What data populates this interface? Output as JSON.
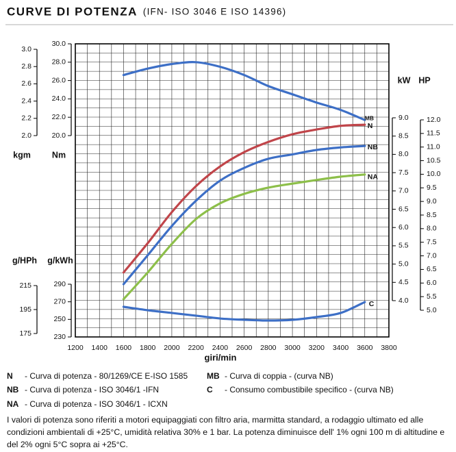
{
  "chart_data": {
    "type": "line",
    "title": "CURVE DI POTENZA",
    "subtitle": "(IFN- ISO 3046 E ISO 14396)",
    "x_label": "giri/min",
    "x": [
      1600,
      1800,
      2000,
      2200,
      2400,
      2600,
      2800,
      3000,
      3200,
      3400,
      3600
    ],
    "xlim": [
      1200,
      3800
    ],
    "xticks": [
      1200,
      1400,
      1600,
      1800,
      2000,
      2200,
      2400,
      2600,
      2800,
      3000,
      3200,
      3400,
      3600,
      3800
    ],
    "grid": true,
    "y_axes": [
      {
        "label": "kgm",
        "lim": [
          2,
          3
        ],
        "ticks": [
          {
            "value": 2,
            "label": "2.0"
          },
          {
            "value": 2.2,
            "label": "2.2"
          },
          {
            "value": 2.4,
            "label": "2.4"
          },
          {
            "value": 2.6,
            "label": "2.6"
          },
          {
            "value": 2.8,
            "label": "2.8"
          },
          {
            "value": 3,
            "label": "3.0"
          }
        ]
      },
      {
        "label": "Nm",
        "lim": [
          20,
          30
        ],
        "ticks": [
          {
            "value": 20,
            "label": "20.0"
          },
          {
            "value": 22,
            "label": "22.0"
          },
          {
            "value": 24,
            "label": "24.0"
          },
          {
            "value": 26,
            "label": "26.0"
          },
          {
            "value": 28,
            "label": "28.0"
          },
          {
            "value": 30,
            "label": "30.0"
          }
        ]
      },
      {
        "label": "kW",
        "lim": [
          4,
          9
        ],
        "ticks": [
          {
            "value": 4,
            "label": "4.0"
          },
          4.5,
          {
            "value": 5,
            "label": "5.0"
          },
          5.5,
          {
            "value": 6,
            "label": "6.0"
          },
          6.5,
          {
            "value": 7,
            "label": "7.0"
          },
          7.5,
          {
            "value": 8,
            "label": "8.0"
          },
          8.5,
          {
            "value": 9,
            "label": "9.0"
          }
        ]
      },
      {
        "label": "HP",
        "lim": [
          5,
          12
        ],
        "ticks": [
          {
            "value": 5,
            "label": "5.0"
          },
          5.5,
          {
            "value": 6,
            "label": "6.0"
          },
          6.5,
          {
            "value": 7,
            "label": "7.0"
          },
          7.5,
          {
            "value": 8,
            "label": "8.0"
          },
          8.5,
          {
            "value": 9,
            "label": "9.0"
          },
          9.5,
          {
            "value": 10,
            "label": "10.0"
          },
          10.5,
          {
            "value": 11,
            "label": "11.0"
          },
          11.5,
          {
            "value": 12,
            "label": "12.0"
          }
        ]
      },
      {
        "label": "g/HPh",
        "lim": [
          175,
          215
        ],
        "ticks": [
          175,
          195,
          215
        ]
      },
      {
        "label": "g/kWh",
        "lim": [
          230,
          290
        ],
        "ticks": [
          230,
          250,
          270,
          290
        ]
      }
    ],
    "series": [
      {
        "name": "N",
        "description": "- Curva di potenza - 80/1269/CE E-ISO 1585",
        "color": "#c0454a",
        "axis": 2,
        "values": [
          4.77,
          5.57,
          6.42,
          7.13,
          7.67,
          8.06,
          8.34,
          8.55,
          8.68,
          8.78,
          8.81
        ]
      },
      {
        "name": "NB",
        "description": "- Curva di potenza - ISO 3046/1 -IFN",
        "color": "#3d6fc6",
        "axis": 2,
        "values": [
          4.45,
          5.24,
          6.04,
          6.73,
          7.28,
          7.63,
          7.88,
          8.0,
          8.12,
          8.19,
          8.23
        ]
      },
      {
        "name": "NA",
        "description": "- Curva di potenza - ISO 3046/1 - ICXN",
        "color": "#8dbf4a",
        "axis": 2,
        "values": [
          4.04,
          4.77,
          5.55,
          6.23,
          6.66,
          6.92,
          7.09,
          7.2,
          7.3,
          7.39,
          7.45
        ]
      },
      {
        "name": "MB",
        "description": "- Curva di coppia - (curva NB)",
        "color": "#3d6fc6",
        "axis": 1,
        "values": [
          26.6,
          27.3,
          27.8,
          28.0,
          27.5,
          26.6,
          25.4,
          24.5,
          23.6,
          22.8,
          21.7
        ]
      },
      {
        "name": "C",
        "description": "- Consumo combustibile specifico - (curva NB)",
        "color": "#3d6fc6",
        "axis": 5,
        "values": [
          264.3,
          260.4,
          257.3,
          254.2,
          251.0,
          249.5,
          248.7,
          249.5,
          252.6,
          257.3,
          269.7
        ]
      }
    ],
    "note": "I valori di potenza sono riferiti a motori equipaggiati con filtro aria, marmitta standard, a rodaggio ultimato ed alle condizioni ambientali di +25°C, umidità relativa 30% e 1 bar. La potenza diminuisce dell' 1% ogni 100 m di altitudine e del 2% ogni 5°C sopra ai +25°C."
  }
}
